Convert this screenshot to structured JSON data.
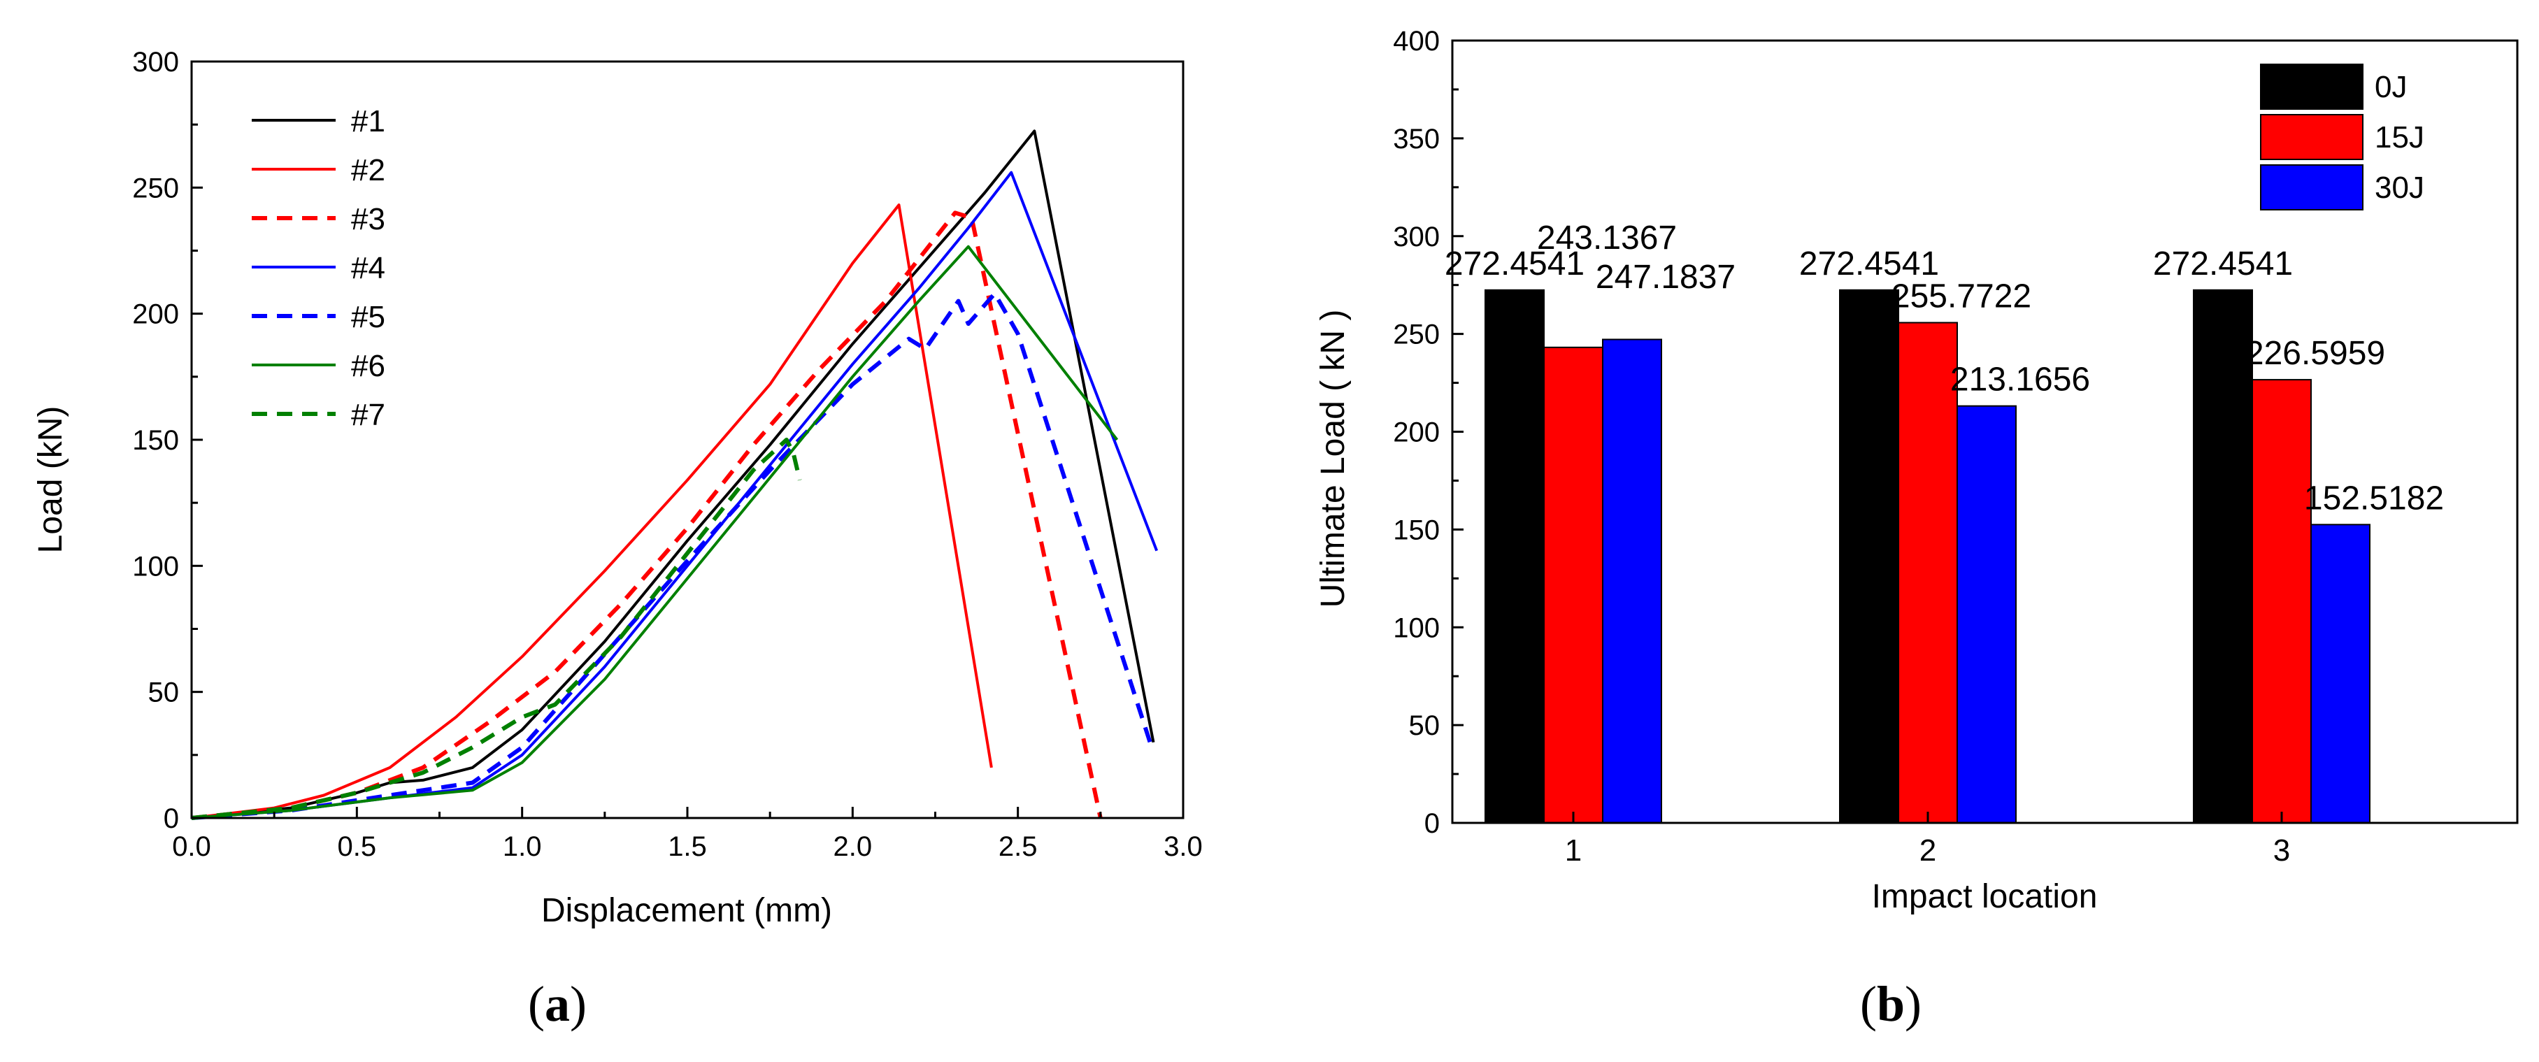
{
  "chart_data": [
    {
      "type": "line",
      "panel": "a",
      "title": "",
      "xlabel": "Displacement (mm)",
      "ylabel": "Load (kN)",
      "xlim": [
        0.0,
        3.0
      ],
      "ylim": [
        0,
        300
      ],
      "xticks": [
        "0.0",
        "0.5",
        "1.0",
        "1.5",
        "2.0",
        "2.5",
        "3.0"
      ],
      "yticks": [
        "0",
        "50",
        "100",
        "150",
        "200",
        "250",
        "300"
      ],
      "legend_position": "top-left",
      "series": [
        {
          "name": "#1",
          "color": "#000000",
          "dash": "solid",
          "points": [
            [
              0,
              0
            ],
            [
              0.3,
              4
            ],
            [
              0.5,
              10
            ],
            [
              0.6,
              14
            ],
            [
              0.7,
              15
            ],
            [
              0.85,
              20
            ],
            [
              1.0,
              35
            ],
            [
              1.25,
              70
            ],
            [
              1.5,
              110
            ],
            [
              1.75,
              148
            ],
            [
              2.0,
              188
            ],
            [
              2.2,
              218
            ],
            [
              2.4,
              248
            ],
            [
              2.55,
              272.45
            ],
            [
              2.91,
              30
            ]
          ]
        },
        {
          "name": "#2",
          "color": "#ff0000",
          "dash": "solid",
          "points": [
            [
              0,
              0
            ],
            [
              0.25,
              4
            ],
            [
              0.4,
              9
            ],
            [
              0.6,
              20
            ],
            [
              0.8,
              40
            ],
            [
              1.0,
              64
            ],
            [
              1.25,
              98
            ],
            [
              1.5,
              134
            ],
            [
              1.75,
              172
            ],
            [
              2.0,
              220
            ],
            [
              2.14,
              243.14
            ],
            [
              2.42,
              20
            ]
          ]
        },
        {
          "name": "#3",
          "color": "#ff0000",
          "dash": "dashed",
          "points": [
            [
              0,
              0
            ],
            [
              0.3,
              4
            ],
            [
              0.5,
              10
            ],
            [
              0.7,
              20
            ],
            [
              0.9,
              38
            ],
            [
              1.1,
              58
            ],
            [
              1.3,
              85
            ],
            [
              1.5,
              115
            ],
            [
              1.7,
              148
            ],
            [
              1.9,
              178
            ],
            [
              2.1,
              205
            ],
            [
              2.31,
              240
            ],
            [
              2.36,
              238
            ],
            [
              2.75,
              0
            ]
          ]
        },
        {
          "name": "#4",
          "color": "#0000ff",
          "dash": "solid",
          "points": [
            [
              0,
              0
            ],
            [
              0.3,
              3
            ],
            [
              0.6,
              8
            ],
            [
              0.85,
              12
            ],
            [
              1.0,
              25
            ],
            [
              1.25,
              60
            ],
            [
              1.5,
              100
            ],
            [
              1.75,
              140
            ],
            [
              2.0,
              180
            ],
            [
              2.2,
              210
            ],
            [
              2.35,
              234
            ],
            [
              2.48,
              256
            ],
            [
              2.92,
              106
            ]
          ]
        },
        {
          "name": "#5",
          "color": "#0000ff",
          "dash": "dashed",
          "points": [
            [
              0,
              0
            ],
            [
              0.3,
              3
            ],
            [
              0.6,
              9
            ],
            [
              0.85,
              14
            ],
            [
              1.0,
              28
            ],
            [
              1.25,
              65
            ],
            [
              1.5,
              102
            ],
            [
              1.75,
              138
            ],
            [
              2.0,
              172
            ],
            [
              2.17,
              190
            ],
            [
              2.22,
              186
            ],
            [
              2.32,
              205
            ],
            [
              2.35,
              196
            ],
            [
              2.43,
              208
            ],
            [
              2.5,
              192
            ],
            [
              2.9,
              30
            ]
          ]
        },
        {
          "name": "#6",
          "color": "#008000",
          "dash": "solid",
          "points": [
            [
              0,
              0
            ],
            [
              0.3,
              3
            ],
            [
              0.6,
              8
            ],
            [
              0.85,
              11
            ],
            [
              1.0,
              22
            ],
            [
              1.25,
              55
            ],
            [
              1.5,
              95
            ],
            [
              1.75,
              135
            ],
            [
              2.0,
              175
            ],
            [
              2.2,
              205
            ],
            [
              2.35,
              226.6
            ],
            [
              2.8,
              150
            ]
          ]
        },
        {
          "name": "#7",
          "color": "#008000",
          "dash": "dashed",
          "points": [
            [
              0,
              0
            ],
            [
              0.3,
              4
            ],
            [
              0.5,
              10
            ],
            [
              0.7,
              18
            ],
            [
              0.85,
              28
            ],
            [
              1.0,
              40
            ],
            [
              1.1,
              45
            ],
            [
              1.3,
              72
            ],
            [
              1.5,
              105
            ],
            [
              1.7,
              138
            ],
            [
              1.8,
              150
            ],
            [
              1.82,
              145
            ],
            [
              1.84,
              134
            ]
          ]
        }
      ]
    },
    {
      "type": "bar",
      "panel": "b",
      "title": "",
      "xlabel": "Impact location",
      "ylabel": "Ultimate Load ( kN )",
      "ylim": [
        0,
        400
      ],
      "yticks": [
        "0",
        "50",
        "100",
        "150",
        "200",
        "250",
        "300",
        "350",
        "400"
      ],
      "categories": [
        "1",
        "2",
        "3"
      ],
      "legend_position": "top-right",
      "series": [
        {
          "name": "0J",
          "color": "#000000",
          "values": [
            272.4541,
            272.4541,
            272.4541
          ],
          "labels": [
            "272.4541",
            "272.4541",
            "272.4541"
          ]
        },
        {
          "name": "15J",
          "color": "#ff0000",
          "values": [
            243.1367,
            255.7722,
            226.5959
          ],
          "labels": [
            "243.1367",
            "255.7722",
            "226.5959"
          ]
        },
        {
          "name": "30J",
          "color": "#0000ff",
          "values": [
            247.1837,
            213.1656,
            152.5182
          ],
          "labels": [
            "247.1837",
            "213.1656",
            "152.5182"
          ]
        }
      ]
    }
  ],
  "panel_labels": {
    "a": "a",
    "b": "b"
  }
}
